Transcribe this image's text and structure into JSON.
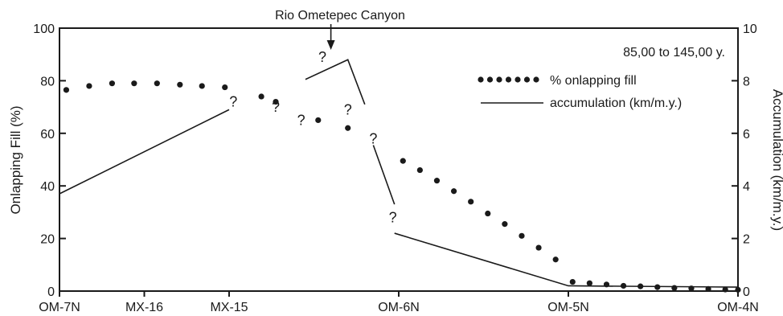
{
  "chart_data": {
    "type": "line",
    "title": "",
    "annotation_top": "Rio Ometepec Canyon",
    "period_label": "85,00 to 145,00 y.",
    "categories": [
      "OM-7N",
      "MX-16",
      "MX-15",
      "OM-6N",
      "OM-5N",
      "OM-4N"
    ],
    "category_positions": [
      0,
      1,
      2,
      4,
      6,
      8
    ],
    "xlim": [
      0,
      8
    ],
    "canyon_x": 3.2,
    "left_axis": {
      "label": "Onlapping Fill (%)",
      "ylim": [
        0,
        100
      ],
      "ticks": [
        0,
        20,
        40,
        60,
        80,
        100
      ]
    },
    "right_axis": {
      "label": "Accumulation (km/m.y.)",
      "ylim": [
        0,
        10
      ],
      "ticks": [
        0,
        2,
        4,
        6,
        8,
        10
      ]
    },
    "series": [
      {
        "name": "% onlapping fill",
        "style": "dotted",
        "axis": "left",
        "segments": [
          {
            "x": [
              0.08,
              0.35,
              0.62,
              0.88,
              1.15,
              1.42,
              1.68,
              1.95
            ],
            "y": [
              76.5,
              78,
              79,
              79,
              79,
              78.5,
              78,
              77.5
            ]
          },
          {
            "x": [
              2.38,
              2.55,
              3.05,
              3.4
            ],
            "y": [
              74,
              72,
              65,
              62
            ]
          },
          {
            "x": [
              4.05,
              4.25,
              4.45,
              4.65,
              4.85,
              5.05,
              5.25,
              5.45,
              5.65,
              5.85,
              6.05,
              6.25,
              6.45,
              6.65,
              6.85,
              7.05,
              7.25,
              7.45,
              7.65,
              7.85,
              8.0
            ],
            "y": [
              49.5,
              46,
              42,
              38,
              34,
              29.5,
              25.5,
              21,
              16.5,
              12,
              3.5,
              3,
              2.5,
              2,
              1.8,
              1.5,
              1.2,
              1,
              0.8,
              0.6,
              0.5
            ]
          }
        ]
      },
      {
        "name": "accumulation (km/m.y.)",
        "style": "solid",
        "axis": "right",
        "segments": [
          {
            "x": [
              0,
              2.0
            ],
            "y": [
              3.7,
              6.9
            ]
          },
          {
            "x": [
              2.9,
              3.4,
              3.6
            ],
            "y": [
              8.05,
              8.8,
              7.1
            ]
          },
          {
            "x": [
              3.7,
              3.95
            ],
            "y": [
              5.55,
              3.3
            ]
          },
          {
            "x": [
              3.95,
              6.0,
              8.0
            ],
            "y": [
              2.2,
              0.2,
              0.15
            ]
          }
        ]
      }
    ],
    "question_marks": [
      {
        "x": 2.05,
        "y_pct": 72,
        "text": "?"
      },
      {
        "x": 2.55,
        "y_pct": 70,
        "text": "?"
      },
      {
        "x": 2.85,
        "y_pct": 65,
        "text": "?"
      },
      {
        "x": 3.1,
        "y_pct": 89,
        "text": "?"
      },
      {
        "x": 3.4,
        "y_pct": 69,
        "text": "?"
      },
      {
        "x": 3.7,
        "y_pct": 58,
        "text": "?"
      },
      {
        "x": 3.93,
        "y_pct": 28,
        "text": "?"
      }
    ],
    "legend": {
      "placement": "top-right"
    },
    "grid": false
  }
}
